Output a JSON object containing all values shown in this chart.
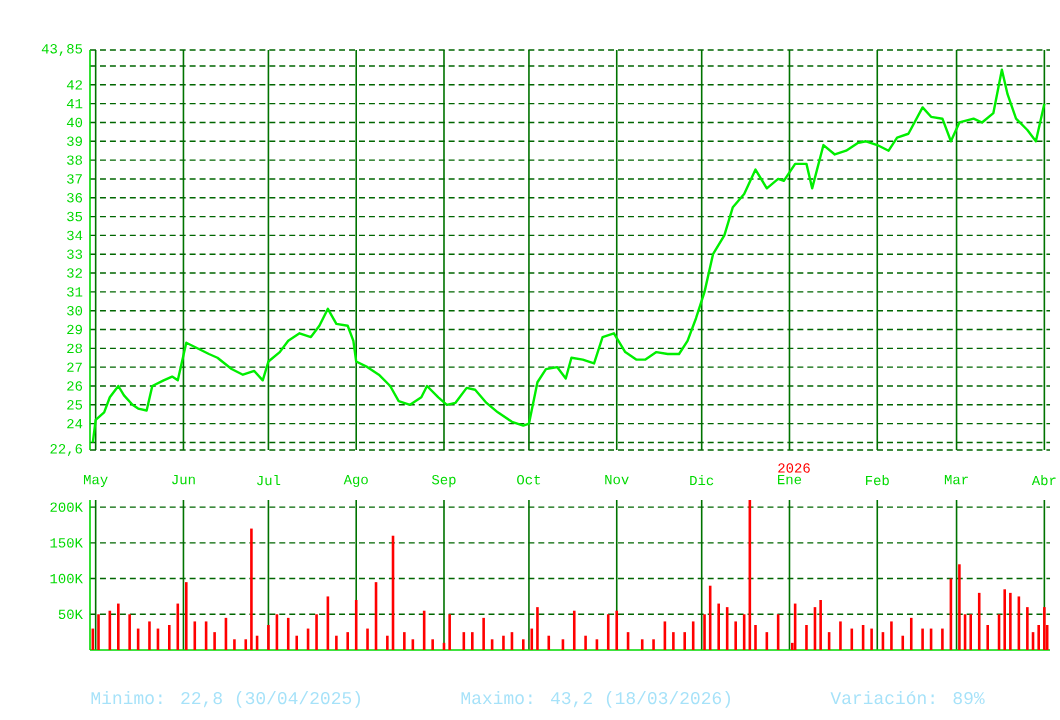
{
  "chart_data": [
    {
      "type": "line",
      "x": [
        "2025-04-30",
        "2025-05-01",
        "2025-05-04",
        "2025-05-06",
        "2025-05-09",
        "2025-05-11",
        "2025-05-14",
        "2025-05-16",
        "2025-05-19",
        "2025-05-21",
        "2025-05-25",
        "2025-05-28",
        "2025-05-30",
        "2025-06-02",
        "2025-06-06",
        "2025-06-10",
        "2025-06-13",
        "2025-06-18",
        "2025-06-22",
        "2025-06-26",
        "2025-06-29",
        "2025-07-01",
        "2025-07-05",
        "2025-07-08",
        "2025-07-12",
        "2025-07-16",
        "2025-07-19",
        "2025-07-22",
        "2025-07-25",
        "2025-07-29",
        "2025-07-31",
        "2025-08-01",
        "2025-08-05",
        "2025-08-09",
        "2025-08-13",
        "2025-08-16",
        "2025-08-20",
        "2025-08-24",
        "2025-08-26",
        "2025-08-30",
        "2025-09-02",
        "2025-09-05",
        "2025-09-09",
        "2025-09-12",
        "2025-09-16",
        "2025-09-20",
        "2025-09-25",
        "2025-09-29",
        "2025-10-01",
        "2025-10-04",
        "2025-10-07",
        "2025-10-11",
        "2025-10-14",
        "2025-10-16",
        "2025-10-20",
        "2025-10-24",
        "2025-10-27",
        "2025-10-31",
        "2025-11-04",
        "2025-11-08",
        "2025-11-11",
        "2025-11-15",
        "2025-11-19",
        "2025-11-23",
        "2025-11-26",
        "2025-11-29",
        "2025-12-02",
        "2025-12-05",
        "2025-12-09",
        "2025-12-12",
        "2025-12-16",
        "2025-12-20",
        "2025-12-24",
        "2025-12-28",
        "2025-12-30",
        "2026-01-03",
        "2026-01-07",
        "2026-01-09",
        "2026-01-13",
        "2026-01-17",
        "2026-01-21",
        "2026-01-25",
        "2026-01-28",
        "2026-02-01",
        "2026-02-05",
        "2026-02-08",
        "2026-02-12",
        "2026-02-17",
        "2026-02-20",
        "2026-02-24",
        "2026-02-27",
        "2026-03-02",
        "2026-03-07",
        "2026-03-10",
        "2026-03-14",
        "2026-03-17",
        "2026-03-19",
        "2026-03-22",
        "2026-03-26",
        "2026-03-29",
        "2026-04-01"
      ],
      "series": [
        {
          "color": "#00ee00",
          "values": [
            23.0,
            24.2,
            24.6,
            25.4,
            26.0,
            25.5,
            25.0,
            24.8,
            24.7,
            26.0,
            26.3,
            26.5,
            26.3,
            28.3,
            28.0,
            27.7,
            27.5,
            26.9,
            26.6,
            26.8,
            26.3,
            27.3,
            27.8,
            28.4,
            28.8,
            28.6,
            29.2,
            30.1,
            29.3,
            29.2,
            28.4,
            27.3,
            27.0,
            26.6,
            26.0,
            25.2,
            25.0,
            25.4,
            26.0,
            25.4,
            25.0,
            25.1,
            25.9,
            25.8,
            25.1,
            24.6,
            24.1,
            23.9,
            24.0,
            26.2,
            26.9,
            27.0,
            26.4,
            27.5,
            27.4,
            27.2,
            28.6,
            28.8,
            27.8,
            27.4,
            27.4,
            27.8,
            27.7,
            27.7,
            28.4,
            29.6,
            31.0,
            33.0,
            34.0,
            35.5,
            36.2,
            37.5,
            36.5,
            37.0,
            36.9,
            37.8,
            37.8,
            36.5,
            38.8,
            38.3,
            38.5,
            38.9,
            39.0,
            38.8,
            38.5,
            39.2,
            39.4,
            40.8,
            40.3,
            40.2,
            39.0,
            40.0,
            40.2,
            40.0,
            40.5,
            42.8,
            41.5,
            40.2,
            39.6,
            39.0,
            41.0
          ]
        }
      ],
      "xlim": [
        "2025-04-29",
        "2026-04-03"
      ],
      "xticks": [
        {
          "value": "2025-05-01",
          "label": "May"
        },
        {
          "value": "2025-06-01",
          "label": "Jun"
        },
        {
          "value": "2025-07-01",
          "label": "Jul"
        },
        {
          "value": "2025-08-01",
          "label": "Ago"
        },
        {
          "value": "2025-09-01",
          "label": "Sep"
        },
        {
          "value": "2025-10-01",
          "label": "Oct"
        },
        {
          "value": "2025-11-01",
          "label": "Nov"
        },
        {
          "value": "2025-12-01",
          "label": "Dic"
        },
        {
          "value": "2026-01-01",
          "label": "Ene"
        },
        {
          "value": "2026-02-01",
          "label": "Feb"
        },
        {
          "value": "2026-03-01",
          "label": "Mar"
        },
        {
          "value": "2026-04-01",
          "label": "Abr"
        }
      ],
      "ylim": [
        22.6,
        43.85
      ],
      "yticks": [
        {
          "value": 22.6,
          "label": "22,6"
        },
        {
          "value": 23,
          "label": null
        },
        24,
        25,
        26,
        27,
        28,
        29,
        30,
        31,
        32,
        33,
        34,
        35,
        36,
        37,
        38,
        39,
        40,
        41,
        42,
        {
          "value": 43,
          "label": null
        },
        {
          "value": 43.85,
          "label": "43,85"
        }
      ],
      "grid": true,
      "annotations": [
        "2026"
      ]
    },
    {
      "type": "bar",
      "x": [
        "2025-04-30",
        "2025-05-02",
        "2025-05-06",
        "2025-05-09",
        "2025-05-13",
        "2025-05-16",
        "2025-05-20",
        "2025-05-23",
        "2025-05-27",
        "2025-05-30",
        "2025-06-02",
        "2025-06-05",
        "2025-06-09",
        "2025-06-12",
        "2025-06-16",
        "2025-06-19",
        "2025-06-23",
        "2025-06-25",
        "2025-06-27",
        "2025-07-01",
        "2025-07-04",
        "2025-07-08",
        "2025-07-11",
        "2025-07-15",
        "2025-07-18",
        "2025-07-22",
        "2025-07-25",
        "2025-07-29",
        "2025-08-01",
        "2025-08-05",
        "2025-08-08",
        "2025-08-12",
        "2025-08-14",
        "2025-08-18",
        "2025-08-21",
        "2025-08-25",
        "2025-08-28",
        "2025-09-01",
        "2025-09-03",
        "2025-09-08",
        "2025-09-11",
        "2025-09-15",
        "2025-09-18",
        "2025-09-22",
        "2025-09-25",
        "2025-09-29",
        "2025-10-02",
        "2025-10-04",
        "2025-10-08",
        "2025-10-13",
        "2025-10-17",
        "2025-10-21",
        "2025-10-25",
        "2025-10-29",
        "2025-11-01",
        "2025-11-05",
        "2025-11-10",
        "2025-11-14",
        "2025-11-18",
        "2025-11-21",
        "2025-11-25",
        "2025-11-28",
        "2025-12-02",
        "2025-12-04",
        "2025-12-07",
        "2025-12-10",
        "2025-12-13",
        "2025-12-16",
        "2025-12-18",
        "2025-12-20",
        "2025-12-24",
        "2025-12-28",
        "2026-01-02",
        "2026-01-03",
        "2026-01-07",
        "2026-01-10",
        "2026-01-12",
        "2026-01-15",
        "2026-01-19",
        "2026-01-23",
        "2026-01-27",
        "2026-01-30",
        "2026-02-03",
        "2026-02-06",
        "2026-02-10",
        "2026-02-13",
        "2026-02-17",
        "2026-02-20",
        "2026-02-24",
        "2026-02-27",
        "2026-03-02",
        "2026-03-04",
        "2026-03-06",
        "2026-03-09",
        "2026-03-12",
        "2026-03-16",
        "2026-03-18",
        "2026-03-20",
        "2026-03-23",
        "2026-03-26",
        "2026-03-28",
        "2026-03-30",
        "2026-04-01",
        "2026-04-02"
      ],
      "series": [
        {
          "color": "#ff0000",
          "values": [
            30000,
            50000,
            55000,
            65000,
            50000,
            30000,
            40000,
            30000,
            35000,
            65000,
            95000,
            40000,
            40000,
            25000,
            45000,
            15000,
            15000,
            170000,
            20000,
            35000,
            50000,
            45000,
            20000,
            30000,
            50000,
            75000,
            20000,
            25000,
            70000,
            30000,
            95000,
            20000,
            160000,
            25000,
            15000,
            55000,
            15000,
            10000,
            50000,
            25000,
            25000,
            45000,
            15000,
            20000,
            25000,
            15000,
            30000,
            60000,
            20000,
            15000,
            55000,
            20000,
            15000,
            50000,
            55000,
            25000,
            15000,
            15000,
            40000,
            25000,
            25000,
            40000,
            50000,
            90000,
            65000,
            60000,
            40000,
            50000,
            210000,
            35000,
            25000,
            50000,
            10000,
            65000,
            35000,
            60000,
            70000,
            25000,
            40000,
            30000,
            35000,
            30000,
            25000,
            40000,
            20000,
            45000,
            30000,
            30000,
            30000,
            100000,
            120000,
            50000,
            50000,
            80000,
            35000,
            50000,
            85000,
            80000,
            75000,
            60000,
            25000,
            35000,
            60000,
            35000
          ]
        }
      ],
      "xlim": [
        "2025-04-29",
        "2026-04-03"
      ],
      "xticks": [
        {
          "value": "2025-05-01",
          "label": null
        },
        {
          "value": "2025-06-01",
          "label": null
        },
        {
          "value": "2025-07-01",
          "label": null
        },
        {
          "value": "2025-08-01",
          "label": null
        },
        {
          "value": "2025-09-01",
          "label": null
        },
        {
          "value": "2025-10-01",
          "label": null
        },
        {
          "value": "2025-11-01",
          "label": null
        },
        {
          "value": "2025-12-01",
          "label": null
        },
        {
          "value": "2026-01-01",
          "label": null
        },
        {
          "value": "2026-02-01",
          "label": null
        },
        {
          "value": "2026-03-01",
          "label": null
        },
        {
          "value": "2026-04-01",
          "label": null
        }
      ],
      "ylim": [
        0,
        210000
      ],
      "yticks": [
        {
          "value": 50000,
          "label": "50K"
        },
        {
          "value": 100000,
          "label": "100K"
        },
        {
          "value": 150000,
          "label": "150K"
        },
        {
          "value": 200000,
          "label": "200K"
        }
      ],
      "tick_labels": "y",
      "grid": true,
      "annotations": [
        "Minimo: 22,8 (30/04/2025)",
        "Maximo: 43,2 (18/03/2026)",
        "Variación: 89%"
      ]
    }
  ]
}
